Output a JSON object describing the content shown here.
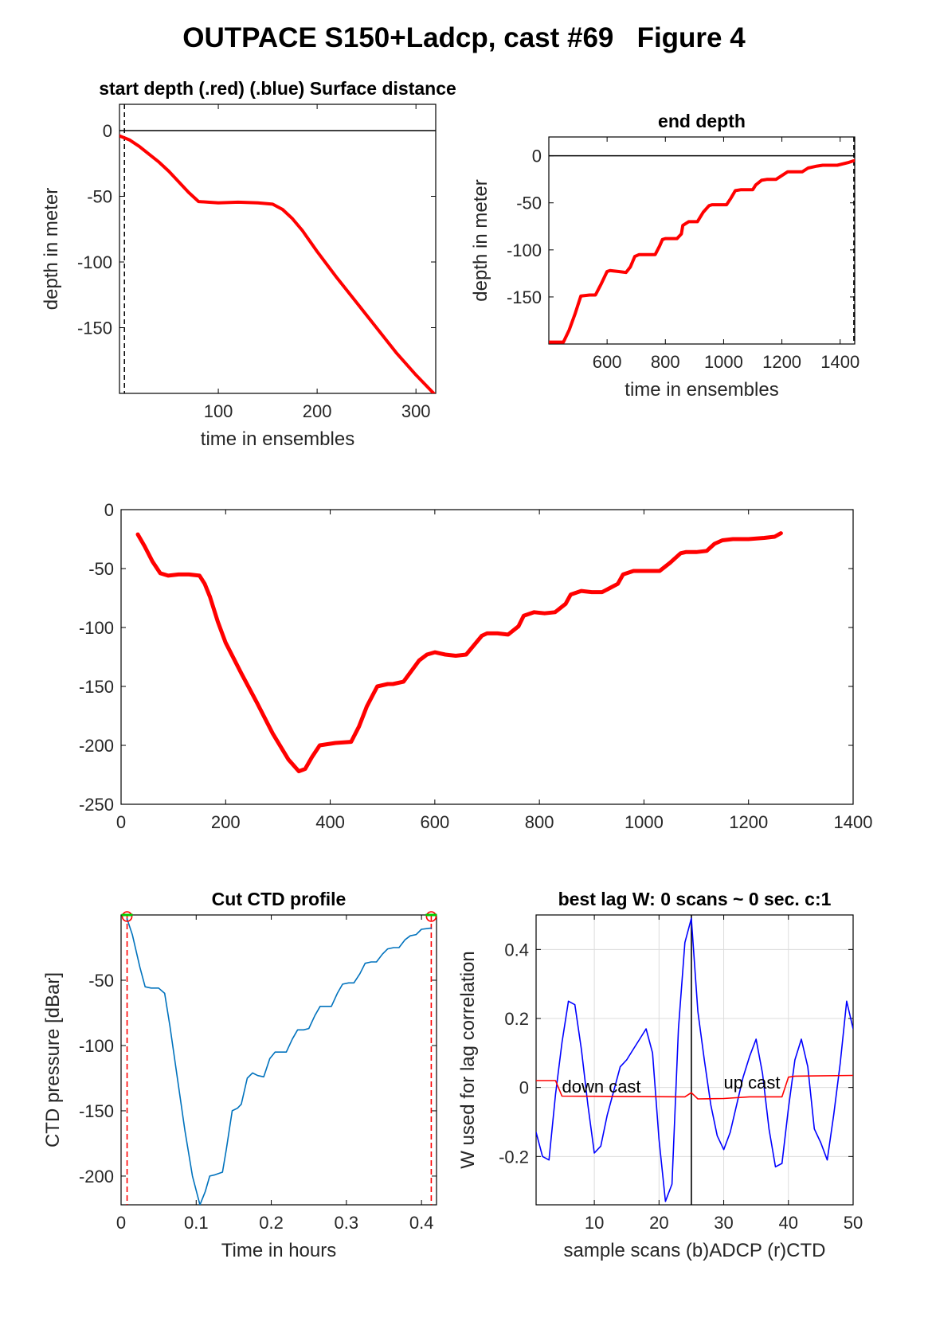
{
  "figure_title": "OUTPACE S150+Ladcp, cast #69   Figure 4",
  "colors": {
    "red": "#ff0000",
    "blue": "#0000ff",
    "ctd": "#0072bd",
    "green": "#00cc00",
    "axis": "#000000",
    "grid": "#dcdcdc"
  },
  "chart_data": [
    {
      "id": "start_depth",
      "type": "line",
      "title": "start depth (.red) (.blue) Surface distance",
      "xlabel": "time in ensembles",
      "ylabel": "depth in meter",
      "xlim": [
        0,
        320
      ],
      "ylim": [
        -200,
        20
      ],
      "xticks": [
        100,
        200,
        300
      ],
      "yticks": [
        0,
        -50,
        -100,
        -150
      ],
      "hline": 0,
      "vline_dashed": 5,
      "series": [
        {
          "color": "red",
          "x": [
            0,
            10,
            20,
            30,
            40,
            50,
            60,
            70,
            80,
            100,
            120,
            140,
            155,
            165,
            175,
            185,
            200,
            220,
            240,
            260,
            280,
            300,
            318
          ],
          "y": [
            -4,
            -7,
            -12,
            -18,
            -24,
            -31,
            -39,
            -47,
            -54,
            -55,
            -54.5,
            -55,
            -56,
            -60,
            -67,
            -76,
            -92,
            -112,
            -131,
            -150,
            -169,
            -186,
            -200
          ]
        }
      ]
    },
    {
      "id": "end_depth",
      "type": "line",
      "title": "end depth",
      "xlabel": "time in ensembles",
      "ylabel": "depth in meter",
      "xlim": [
        400,
        1450
      ],
      "ylim": [
        -200,
        20
      ],
      "xticks": [
        600,
        800,
        1000,
        1200,
        1400
      ],
      "yticks": [
        0,
        -50,
        -100,
        -150
      ],
      "hline": 0,
      "vline_dashed": 1447,
      "series": [
        {
          "color": "red",
          "x": [
            400,
            450,
            470,
            490,
            510,
            540,
            560,
            580,
            600,
            610,
            640,
            665,
            680,
            695,
            710,
            740,
            765,
            780,
            790,
            800,
            820,
            840,
            855,
            860,
            880,
            900,
            910,
            930,
            950,
            960,
            980,
            1010,
            1025,
            1040,
            1060,
            1080,
            1100,
            1110,
            1130,
            1150,
            1160,
            1180,
            1210,
            1220,
            1240,
            1270,
            1290,
            1320,
            1340,
            1360,
            1390,
            1430,
            1450
          ],
          "y": [
            -198,
            -198,
            -185,
            -168,
            -149,
            -148,
            -148,
            -136,
            -123,
            -122,
            -123,
            -124,
            -118,
            -107,
            -105,
            -105,
            -105,
            -96,
            -89,
            -88,
            -88,
            -88,
            -83,
            -74,
            -70,
            -70,
            -70,
            -60,
            -53,
            -52,
            -52,
            -52,
            -45,
            -37,
            -36,
            -36,
            -36,
            -31,
            -26,
            -25,
            -25,
            -25,
            -19,
            -17,
            -17,
            -17,
            -13,
            -11,
            -10,
            -10,
            -10,
            -7,
            -5
          ]
        }
      ]
    },
    {
      "id": "full_profile",
      "type": "line",
      "title": "",
      "xlabel": "",
      "ylabel": "",
      "xlim": [
        0,
        1400
      ],
      "ylim": [
        -250,
        0
      ],
      "xticks": [
        0,
        200,
        400,
        600,
        800,
        1000,
        1200,
        1400
      ],
      "yticks": [
        0,
        -50,
        -100,
        -150,
        -200,
        -250
      ],
      "series": [
        {
          "color": "red",
          "x": [
            32,
            45,
            60,
            75,
            90,
            110,
            130,
            150,
            160,
            170,
            185,
            200,
            230,
            260,
            290,
            320,
            340,
            352,
            365,
            380,
            410,
            440,
            455,
            470,
            490,
            510,
            520,
            540,
            570,
            585,
            600,
            610,
            620,
            640,
            660,
            690,
            700,
            720,
            740,
            760,
            770,
            790,
            810,
            830,
            850,
            860,
            880,
            900,
            920,
            950,
            960,
            980,
            1010,
            1030,
            1050,
            1070,
            1080,
            1100,
            1120,
            1135,
            1150,
            1170,
            1190,
            1200,
            1230,
            1250,
            1262
          ],
          "y": [
            -21,
            -31,
            -44,
            -54,
            -56,
            -55,
            -55,
            -56,
            -63,
            -74,
            -95,
            -113,
            -139,
            -164,
            -190,
            -212,
            -222,
            -220,
            -210,
            -200,
            -198,
            -197,
            -184,
            -167,
            -150,
            -148,
            -148,
            -146,
            -128,
            -123,
            -121,
            -122,
            -123,
            -124,
            -123,
            -107,
            -105,
            -105,
            -106,
            -99,
            -90,
            -87,
            -88,
            -87,
            -80,
            -72,
            -69,
            -70,
            -70,
            -63,
            -55,
            -52,
            -52,
            -52,
            -45,
            -37,
            -36,
            -36,
            -35,
            -29,
            -26,
            -25,
            -25,
            -25,
            -24,
            -23,
            -20
          ]
        }
      ]
    },
    {
      "id": "cut_ctd",
      "type": "line",
      "title": "Cut CTD profile",
      "xlabel": "Time in hours",
      "ylabel": "CTD pressure [dBar]",
      "xlim": [
        0,
        0.42
      ],
      "ylim": [
        -222,
        0
      ],
      "xticks": [
        0,
        0.1,
        0.2,
        0.3,
        0.4
      ],
      "yticks": [
        -50,
        -100,
        -150,
        -200
      ],
      "cut_lines": [
        0.008,
        0.413
      ],
      "series": [
        {
          "color": "ctd",
          "x": [
            0.008,
            0.015,
            0.025,
            0.032,
            0.04,
            0.05,
            0.058,
            0.065,
            0.075,
            0.085,
            0.095,
            0.105,
            0.112,
            0.118,
            0.125,
            0.135,
            0.14,
            0.148,
            0.155,
            0.16,
            0.168,
            0.175,
            0.182,
            0.19,
            0.198,
            0.205,
            0.212,
            0.22,
            0.228,
            0.235,
            0.243,
            0.25,
            0.258,
            0.265,
            0.273,
            0.28,
            0.288,
            0.295,
            0.303,
            0.31,
            0.318,
            0.325,
            0.333,
            0.34,
            0.348,
            0.355,
            0.363,
            0.37,
            0.378,
            0.385,
            0.393,
            0.4,
            0.413
          ],
          "y": [
            -3,
            -15,
            -40,
            -55,
            -56,
            -56,
            -60,
            -85,
            -125,
            -165,
            -200,
            -222,
            -212,
            -200,
            -199,
            -197,
            -180,
            -150,
            -148,
            -145,
            -125,
            -121,
            -123,
            -124,
            -110,
            -105,
            -105,
            -105,
            -95,
            -88,
            -88,
            -87,
            -77,
            -70,
            -70,
            -70,
            -60,
            -53,
            -52,
            -52,
            -45,
            -37,
            -36,
            -36,
            -30,
            -26,
            -25,
            -25,
            -19,
            -16,
            -15,
            -11,
            -10
          ]
        }
      ]
    },
    {
      "id": "best_lag",
      "type": "line",
      "title": "best lag W: 0 scans ~ 0 sec.  c:1",
      "xlabel": "sample scans (b)ADCP (r)CTD",
      "ylabel": "W used for lag correlation",
      "xlim": [
        1,
        50
      ],
      "ylim": [
        -0.34,
        0.5
      ],
      "xticks": [
        10,
        20,
        30,
        40,
        50
      ],
      "yticks": [
        0.4,
        0.2,
        0,
        -0.2
      ],
      "vline": 25,
      "annotations": [
        {
          "text": "down cast",
          "x": 5,
          "y": -0.015
        },
        {
          "text": "up cast",
          "x": 30,
          "y": -0.003
        }
      ],
      "series": [
        {
          "color": "blue",
          "x": [
            1,
            2,
            3,
            4,
            5,
            6,
            7,
            8,
            9,
            10,
            11,
            12,
            13,
            14,
            15,
            16,
            17,
            18,
            19,
            20,
            21,
            22,
            23,
            24,
            25,
            26,
            27,
            28,
            29,
            30,
            31,
            32,
            33,
            34,
            35,
            36,
            37,
            38,
            39,
            40,
            41,
            42,
            43,
            44,
            45,
            46,
            47,
            48,
            49,
            50
          ],
          "y": [
            -0.13,
            -0.2,
            -0.21,
            -0.02,
            0.13,
            0.25,
            0.24,
            0.11,
            -0.05,
            -0.19,
            -0.17,
            -0.08,
            -0.01,
            0.06,
            0.08,
            0.11,
            0.14,
            0.17,
            0.1,
            -0.15,
            -0.33,
            -0.28,
            0.17,
            0.42,
            0.49,
            0.22,
            0.08,
            -0.05,
            -0.14,
            -0.18,
            -0.13,
            -0.05,
            0.03,
            0.09,
            0.14,
            0.04,
            -0.12,
            -0.23,
            -0.22,
            -0.06,
            0.08,
            0.14,
            0.06,
            -0.12,
            -0.16,
            -0.21,
            -0.08,
            0.07,
            0.25,
            0.17
          ]
        },
        {
          "color": "red",
          "x": [
            1,
            4,
            5,
            24,
            25,
            26,
            30,
            34,
            39,
            40,
            41,
            50
          ],
          "y": [
            0.02,
            0.02,
            -0.025,
            -0.027,
            -0.015,
            -0.033,
            -0.032,
            -0.027,
            -0.027,
            0.03,
            0.033,
            0.035
          ]
        }
      ]
    }
  ]
}
